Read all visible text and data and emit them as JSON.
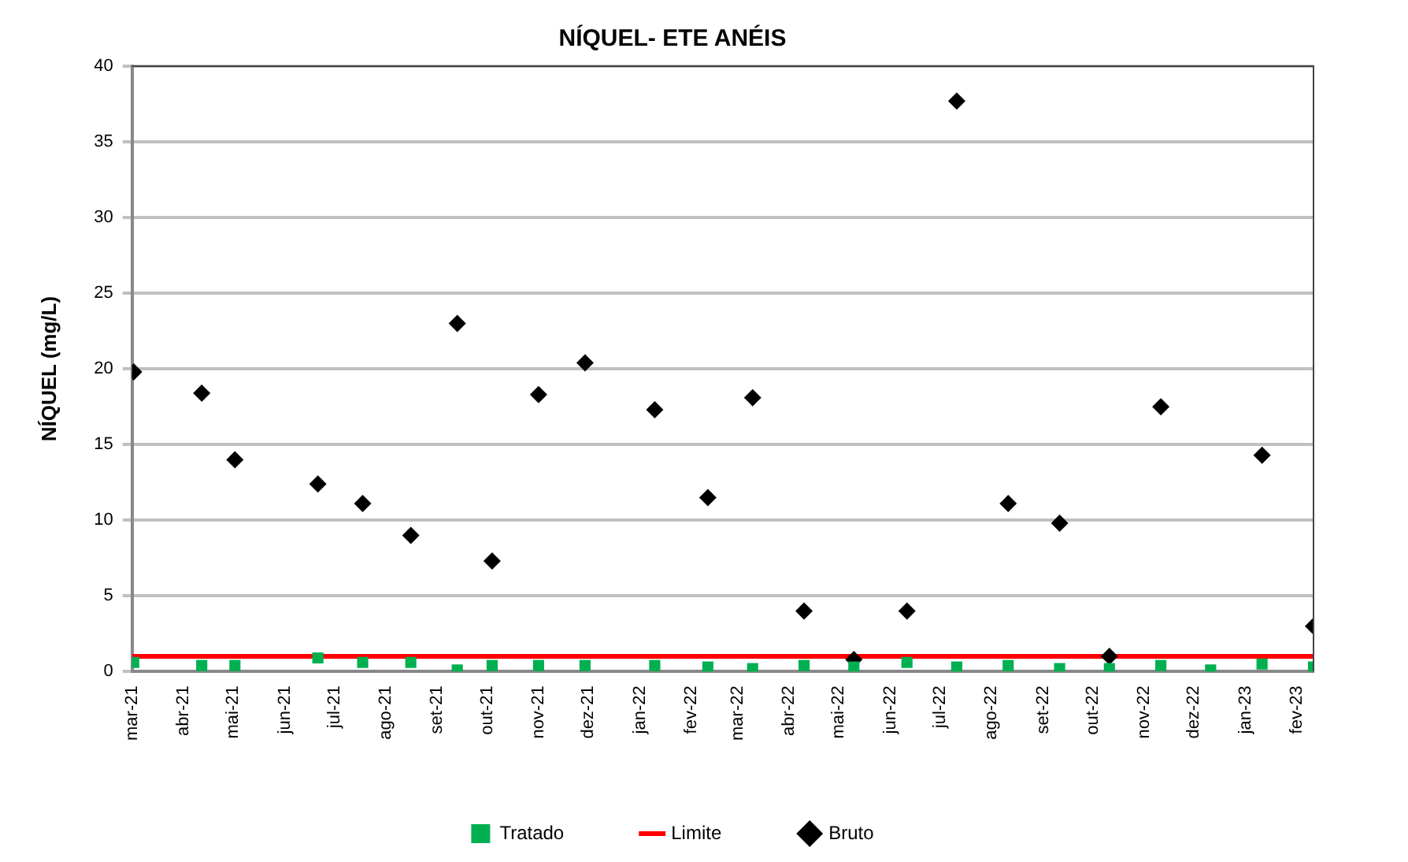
{
  "chart_data": {
    "type": "scatter",
    "title": "NÍQUEL- ETE ANÉIS",
    "ylabel": "NÍQUEL (mg/L)",
    "x": [
      "2021-03-02",
      "2021-04-12",
      "2021-05-02",
      "2021-06-21",
      "2021-07-18",
      "2021-08-16",
      "2021-09-13",
      "2021-10-04",
      "2021-11-01",
      "2021-11-29",
      "2022-01-10",
      "2022-02-11",
      "2022-03-10",
      "2022-04-10",
      "2022-05-10",
      "2022-06-11",
      "2022-07-11",
      "2022-08-11",
      "2022-09-11",
      "2022-10-11",
      "2022-11-11",
      "2022-12-11",
      "2023-01-11",
      "2023-02-11"
    ],
    "series": [
      {
        "name": "Tratado",
        "color": "#00b050",
        "marker": "square",
        "values": [
          0.6,
          0.4,
          0.4,
          0.9,
          0.6,
          0.6,
          0.1,
          0.4,
          0.4,
          0.4,
          0.4,
          0.3,
          0.2,
          0.4,
          0.3,
          0.6,
          0.3,
          0.4,
          0.2,
          0.2,
          0.4,
          0.1,
          0.5,
          0.3
        ]
      },
      {
        "name": "Limite",
        "type": "line",
        "color": "#ff0000",
        "marker": "none",
        "x": [
          "2021-03-01",
          "2023-02-11"
        ],
        "values": [
          1,
          1
        ]
      },
      {
        "name": "Bruto",
        "color": "#000000",
        "marker": "diamond",
        "values": [
          19.8,
          18.4,
          14.0,
          12.4,
          11.1,
          9.0,
          23.0,
          7.3,
          18.3,
          20.4,
          17.3,
          11.5,
          18.1,
          4.0,
          0.8,
          4.0,
          37.7,
          11.1,
          9.8,
          1.0,
          17.5,
          null,
          14.3,
          3.0
        ]
      }
    ],
    "xlim": [
      "2021-03-01",
      "2023-02-11"
    ],
    "xticks": [
      {
        "value": "2021-03",
        "label": "mar-21"
      },
      {
        "value": "2021-04",
        "label": "abr-21"
      },
      {
        "value": "2021-05",
        "label": "mai-21"
      },
      {
        "value": "2021-06",
        "label": "jun-21"
      },
      {
        "value": "2021-07",
        "label": "jul-21"
      },
      {
        "value": "2021-08",
        "label": "ago-21"
      },
      {
        "value": "2021-09",
        "label": "set-21"
      },
      {
        "value": "2021-10",
        "label": "out-21"
      },
      {
        "value": "2021-11",
        "label": "nov-21"
      },
      {
        "value": "2021-12",
        "label": "dez-21"
      },
      {
        "value": "2022-01",
        "label": "jan-22"
      },
      {
        "value": "2022-02",
        "label": "fev-22"
      },
      {
        "value": "2022-03",
        "label": "mar-22"
      },
      {
        "value": "2022-04",
        "label": "abr-22"
      },
      {
        "value": "2022-05",
        "label": "mai-22"
      },
      {
        "value": "2022-06",
        "label": "jun-22"
      },
      {
        "value": "2022-07",
        "label": "jul-22"
      },
      {
        "value": "2022-08",
        "label": "ago-22"
      },
      {
        "value": "2022-09",
        "label": "set-22"
      },
      {
        "value": "2022-10",
        "label": "out-22"
      },
      {
        "value": "2022-11",
        "label": "nov-22"
      },
      {
        "value": "2022-12",
        "label": "dez-22"
      },
      {
        "value": "2023-01",
        "label": "jan-23"
      },
      {
        "value": "2023-02",
        "label": "fev-23"
      }
    ],
    "ylim": [
      0,
      40
    ],
    "yticks": [
      0,
      5,
      10,
      15,
      20,
      25,
      30,
      35,
      40
    ],
    "grid": "y",
    "legend": "bottom"
  }
}
